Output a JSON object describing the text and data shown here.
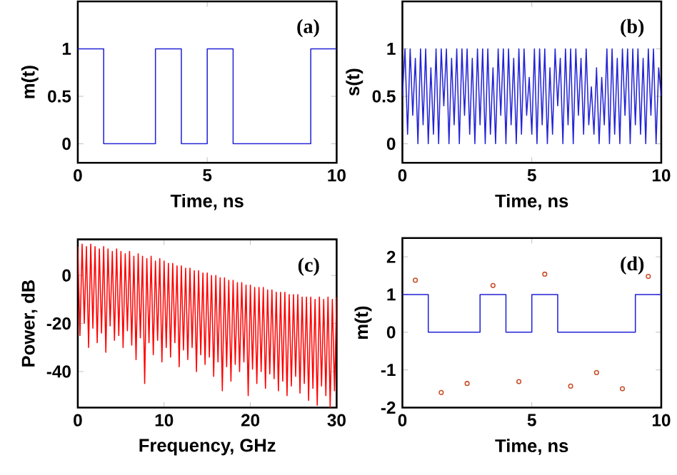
{
  "chart_data": [
    {
      "type": "step",
      "xlabel": "Time, ns",
      "ylabel": "m(t)",
      "xlim": [
        0,
        10
      ],
      "ylim": [
        -0.2,
        1.5
      ],
      "xticks": [
        0,
        5,
        10
      ],
      "yticks": [
        0,
        0.5,
        1
      ],
      "annotations": [
        "(a)"
      ],
      "series": [
        {
          "color": "#2323d6",
          "x": [
            0,
            1,
            2,
            3,
            4,
            5,
            6,
            7,
            8,
            9,
            10
          ],
          "values": [
            1,
            0,
            0,
            1,
            0,
            1,
            0,
            0,
            0,
            1,
            1
          ]
        }
      ]
    },
    {
      "type": "line",
      "xlabel": "Time, ns",
      "ylabel": "s(t)",
      "xlim": [
        0,
        10
      ],
      "ylim": [
        -0.2,
        1.5
      ],
      "xticks": [
        0,
        5,
        10
      ],
      "yticks": [
        0,
        0.5,
        1
      ],
      "annotations": [
        "(b)"
      ],
      "series": [
        {
          "color": "#2323d6",
          "x": [
            0,
            0.1,
            0.2,
            0.3,
            0.4,
            0.5,
            0.6,
            0.7,
            0.8,
            0.9,
            1,
            1.1,
            1.2,
            1.3,
            1.4,
            1.5,
            1.6,
            1.7,
            1.8,
            1.9,
            2,
            2.1,
            2.2,
            2.3,
            2.4,
            2.5,
            2.6,
            2.7,
            2.8,
            2.9,
            3,
            3.1,
            3.2,
            3.3,
            3.4,
            3.5,
            3.6,
            3.7,
            3.8,
            3.9,
            4,
            4.1,
            4.2,
            4.3,
            4.4,
            4.5,
            4.6,
            4.7,
            4.8,
            4.9,
            5,
            5.1,
            5.2,
            5.3,
            5.4,
            5.5,
            5.6,
            5.7,
            5.8,
            5.9,
            6,
            6.1,
            6.2,
            6.3,
            6.4,
            6.5,
            6.6,
            6.7,
            6.8,
            6.9,
            7,
            7.1,
            7.2,
            7.3,
            7.4,
            7.5,
            7.6,
            7.7,
            7.8,
            7.9,
            8,
            8.1,
            8.2,
            8.3,
            8.4,
            8.5,
            8.6,
            8.7,
            8.8,
            8.9,
            9,
            9.1,
            9.2,
            9.3,
            9.4,
            9.5,
            9.6,
            9.7,
            9.8,
            9.9,
            10
          ],
          "values": [
            0.5,
            1,
            0.1,
            1,
            0.3,
            0.9,
            0,
            1,
            0.2,
            1,
            0,
            0.8,
            0.1,
            1,
            0,
            1,
            0.4,
            1,
            0,
            0.9,
            0.2,
            1,
            0,
            1,
            0.3,
            1,
            0.1,
            0.9,
            0,
            1,
            0.2,
            1,
            0,
            1,
            0.1,
            0.8,
            0,
            1,
            0.3,
            1,
            0,
            1,
            0.2,
            0.9,
            0,
            1,
            0.1,
            1,
            0.3,
            0.7,
            0.1,
            1,
            0,
            1,
            0.2,
            1,
            0,
            0.8,
            0.1,
            1,
            0.4,
            0.9,
            0,
            1,
            0.2,
            1,
            0,
            1,
            0.3,
            0.9,
            0.1,
            1,
            0.2,
            0.6,
            0.1,
            0.8,
            0,
            0.7,
            0.2,
            1,
            0,
            1,
            0.1,
            0.9,
            0,
            1,
            0.3,
            1,
            0,
            1,
            0.2,
            1,
            0.1,
            0.9,
            0,
            1,
            0.3,
            1,
            0,
            0.8,
            0.5
          ]
        }
      ]
    },
    {
      "type": "line",
      "xlabel": "Frequency, GHz",
      "ylabel": "Power, dB",
      "xlim": [
        0,
        30
      ],
      "ylim": [
        -55,
        15
      ],
      "xticks": [
        0,
        10,
        20,
        30
      ],
      "yticks": [
        -40,
        -20,
        0
      ],
      "annotations": [
        "(c)"
      ],
      "series": [
        {
          "color": "#ff0000",
          "x": [
            0,
            0.25,
            0.5,
            0.75,
            1,
            1.25,
            1.5,
            1.75,
            2,
            2.25,
            2.5,
            2.75,
            3,
            3.25,
            3.5,
            3.75,
            4,
            4.25,
            4.5,
            4.75,
            5,
            5.25,
            5.5,
            5.75,
            6,
            6.25,
            6.5,
            6.75,
            7,
            7.25,
            7.5,
            7.75,
            8,
            8.25,
            8.5,
            8.75,
            9,
            9.25,
            9.5,
            9.75,
            10,
            10.25,
            10.5,
            10.75,
            11,
            11.25,
            11.5,
            11.75,
            12,
            12.25,
            12.5,
            12.75,
            13,
            13.25,
            13.5,
            13.75,
            14,
            14.25,
            14.5,
            14.75,
            15,
            15.25,
            15.5,
            15.75,
            16,
            16.25,
            16.5,
            16.75,
            17,
            17.25,
            17.5,
            17.75,
            18,
            18.25,
            18.5,
            18.75,
            19,
            19.25,
            19.5,
            19.75,
            20,
            20.25,
            20.5,
            20.75,
            21,
            21.25,
            21.5,
            21.75,
            22,
            22.25,
            22.5,
            22.75,
            23,
            23.25,
            23.5,
            23.75,
            24,
            24.25,
            24.5,
            24.75,
            25,
            25.25,
            25.5,
            25.75,
            26,
            26.25,
            26.5,
            26.75,
            27,
            27.25,
            27.5,
            27.75,
            28,
            28.25,
            28.5,
            28.75,
            29,
            29.25,
            29.5,
            29.75,
            30
          ],
          "values": [
            12,
            -25,
            13,
            -20,
            12,
            -30,
            13,
            -22,
            12,
            -28,
            11,
            -24,
            12,
            -32,
            11,
            -21,
            10,
            -27,
            11,
            -25,
            10,
            -30,
            9,
            -23,
            10,
            -29,
            8,
            -35,
            9,
            -26,
            8,
            -45,
            7,
            -28,
            8,
            -33,
            6,
            -27,
            7,
            -36,
            6,
            -30,
            5,
            -34,
            5,
            -28,
            4,
            -38,
            4,
            -31,
            3,
            -35,
            3,
            -30,
            2,
            -40,
            2,
            -33,
            1,
            -37,
            1,
            -34,
            0,
            -42,
            0,
            -36,
            -1,
            -48,
            -1,
            -38,
            -2,
            -44,
            -2,
            -37,
            -3,
            -40,
            -3,
            -36,
            -4,
            -50,
            -4,
            -39,
            -5,
            -45,
            -5,
            -40,
            -5,
            -47,
            -6,
            -41,
            -6,
            -43,
            -7,
            -48,
            -7,
            -44,
            -7,
            -50,
            -8,
            -46,
            -8,
            -42,
            -8,
            -49,
            -9,
            -45,
            -9,
            -52,
            -9,
            -47,
            -10,
            -54,
            -9,
            -46,
            -10,
            -50,
            -9,
            -55,
            -10,
            -48,
            -9
          ]
        }
      ]
    },
    {
      "type": "step",
      "xlabel": "Time, ns",
      "ylabel": "m(t)",
      "xlim": [
        0,
        10
      ],
      "ylim": [
        -2,
        2.5
      ],
      "xticks": [
        0,
        5,
        10
      ],
      "yticks": [
        -2,
        -1,
        0,
        1,
        2
      ],
      "annotations": [
        "(d)"
      ],
      "series": [
        {
          "color": "#2323d6",
          "x": [
            0,
            1,
            2,
            3,
            4,
            5,
            6,
            7,
            8,
            9,
            10
          ],
          "values": [
            1,
            0,
            0,
            1,
            0,
            1,
            0,
            0,
            0,
            1,
            1
          ]
        },
        {
          "type": "scatter",
          "color": "#c8502a",
          "x": [
            0.5,
            1.5,
            2.5,
            3.5,
            4.5,
            5.5,
            6.5,
            7.5,
            8.5,
            9.5
          ],
          "values": [
            1.38,
            -1.6,
            -1.36,
            1.24,
            -1.31,
            1.54,
            -1.43,
            -1.07,
            -1.5,
            1.48
          ]
        }
      ]
    }
  ]
}
